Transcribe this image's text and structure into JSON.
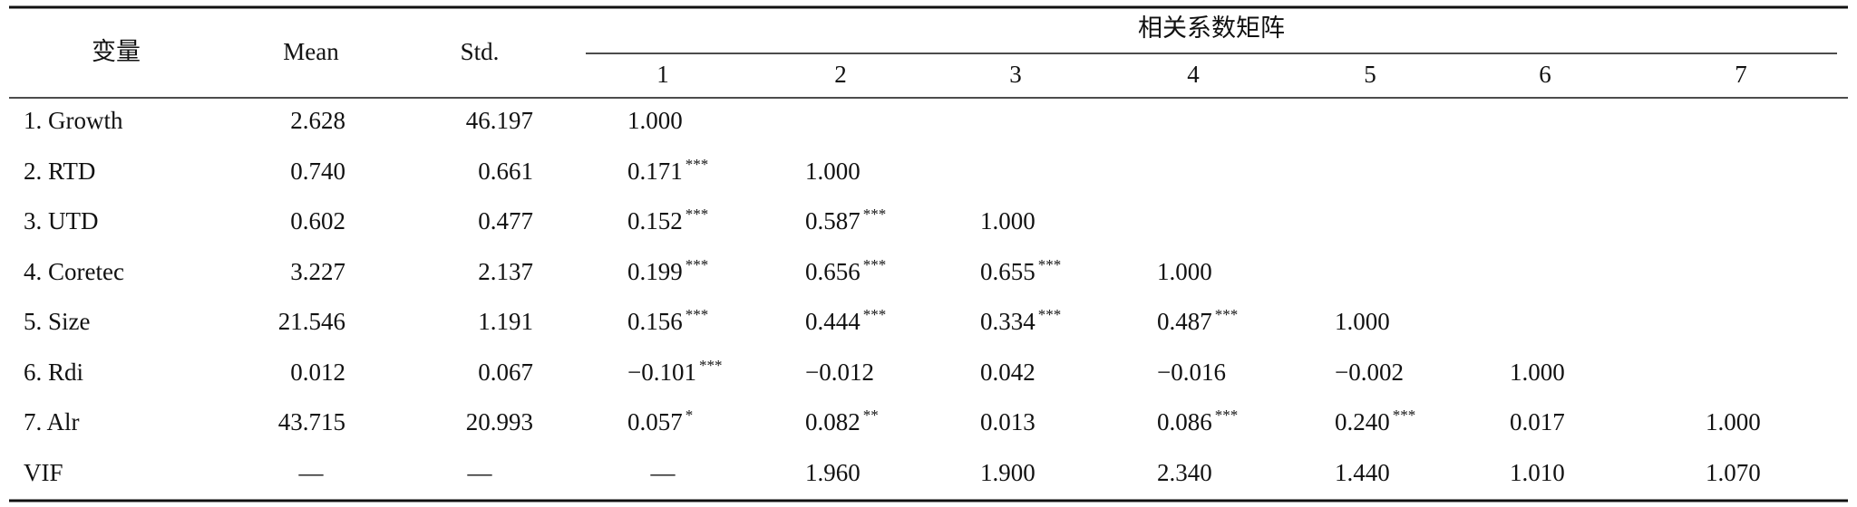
{
  "table": {
    "header": {
      "variable": "变量",
      "mean": "Mean",
      "std": "Std.",
      "matrix": "相关系数矩阵",
      "columns": [
        "1",
        "2",
        "3",
        "4",
        "5",
        "6",
        "7"
      ]
    },
    "rows": [
      {
        "label": "1. Growth",
        "cells": [
          "2.628",
          "46.197",
          "1.000"
        ]
      },
      {
        "label": "2. RTD",
        "cells": [
          "0.740",
          "0.661",
          {
            "v": "0.171",
            "sig": "***"
          },
          "1.000"
        ]
      },
      {
        "label": "3. UTD",
        "cells": [
          "0.602",
          "0.477",
          {
            "v": "0.152",
            "sig": "***"
          },
          {
            "v": "0.587",
            "sig": "***"
          },
          "1.000"
        ]
      },
      {
        "label": "4. Coretec",
        "cells": [
          "3.227",
          "2.137",
          {
            "v": "0.199",
            "sig": "***"
          },
          {
            "v": "0.656",
            "sig": "***"
          },
          {
            "v": "0.655",
            "sig": "***"
          },
          "1.000"
        ]
      },
      {
        "label": "5. Size",
        "cells": [
          "21.546",
          "1.191",
          {
            "v": "0.156",
            "sig": "***"
          },
          {
            "v": "0.444",
            "sig": "***"
          },
          {
            "v": "0.334",
            "sig": "***"
          },
          {
            "v": "0.487",
            "sig": "***"
          },
          "1.000"
        ]
      },
      {
        "label": "6. Rdi",
        "cells": [
          "0.012",
          "0.067",
          {
            "v": "−0.101",
            "sig": "***"
          },
          "−0.012",
          "0.042",
          "−0.016",
          "−0.002",
          "1.000"
        ]
      },
      {
        "label": "7. Alr",
        "cells": [
          "43.715",
          "20.993",
          {
            "v": "0.057",
            "sig": "*"
          },
          {
            "v": "0.082",
            "sig": "**"
          },
          "0.013",
          {
            "v": "0.086",
            "sig": "***"
          },
          {
            "v": "0.240",
            "sig": "***"
          },
          "0.017",
          "1.000"
        ]
      },
      {
        "label": "VIF",
        "cells": [
          "—",
          "—",
          "—",
          "1.960",
          "1.900",
          "2.340",
          "1.440",
          "1.010",
          "1.070"
        ]
      }
    ]
  }
}
